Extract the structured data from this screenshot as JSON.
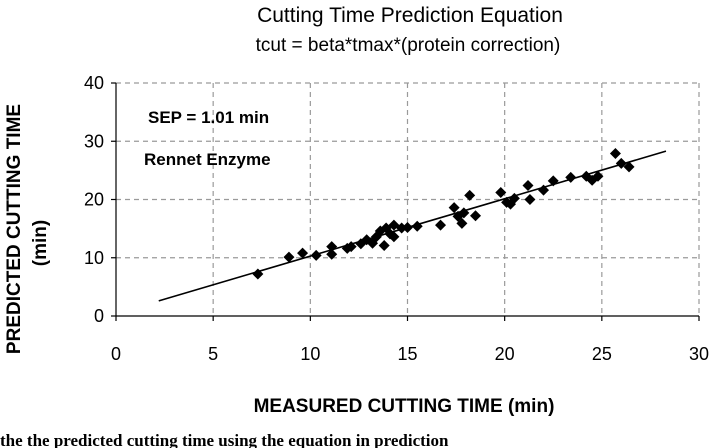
{
  "chart_data": {
    "type": "scatter",
    "title": "Cutting Time Prediction Equation",
    "subtitle": "tcut = beta*tmax*(protein correction)",
    "xlabel": "MEASURED CUTTING TIME (min)",
    "ylabel_line1": "PREDICTED CUTTING TIME",
    "ylabel_line2": "(min)",
    "xlim": [
      0,
      30
    ],
    "ylim": [
      0,
      40
    ],
    "x_ticks": [
      "0",
      "5",
      "10",
      "15",
      "20",
      "25",
      "30"
    ],
    "y_ticks": [
      "0",
      "10",
      "20",
      "30",
      "40"
    ],
    "grid": "dashed",
    "annotations": [
      "SEP = 1.01 min",
      "Rennet Enzyme"
    ],
    "points": [
      [
        7.3,
        7.2
      ],
      [
        8.9,
        10.1
      ],
      [
        9.6,
        10.8
      ],
      [
        10.3,
        10.4
      ],
      [
        11.1,
        10.6
      ],
      [
        11.1,
        11.9
      ],
      [
        11.9,
        11.6
      ],
      [
        12.1,
        11.9
      ],
      [
        12.6,
        12.4
      ],
      [
        12.9,
        13.1
      ],
      [
        13.2,
        12.5
      ],
      [
        13.4,
        13.6
      ],
      [
        13.6,
        14.6
      ],
      [
        13.8,
        12.1
      ],
      [
        13.9,
        15.1
      ],
      [
        14.1,
        14.1
      ],
      [
        14.3,
        13.6
      ],
      [
        14.3,
        15.6
      ],
      [
        14.7,
        15.1
      ],
      [
        15.0,
        15.2
      ],
      [
        15.5,
        15.4
      ],
      [
        16.7,
        15.6
      ],
      [
        17.4,
        18.6
      ],
      [
        17.6,
        17.1
      ],
      [
        17.8,
        15.9
      ],
      [
        17.9,
        17.7
      ],
      [
        18.2,
        20.7
      ],
      [
        18.5,
        17.2
      ],
      [
        19.8,
        21.2
      ],
      [
        20.1,
        19.5
      ],
      [
        20.3,
        19.2
      ],
      [
        20.5,
        20.2
      ],
      [
        21.2,
        22.4
      ],
      [
        21.3,
        20.0
      ],
      [
        22.0,
        21.6
      ],
      [
        22.5,
        23.2
      ],
      [
        23.4,
        23.8
      ],
      [
        24.2,
        24.0
      ],
      [
        24.5,
        23.3
      ],
      [
        24.8,
        24.0
      ],
      [
        25.7,
        27.9
      ],
      [
        26.0,
        26.2
      ],
      [
        26.4,
        25.6
      ]
    ],
    "fit_line": [
      [
        2.2,
        2.6
      ],
      [
        28.3,
        28.3
      ]
    ]
  },
  "caption_fragment": "the  the  predicted  cutting  time  using  the  equation  in  prediction"
}
